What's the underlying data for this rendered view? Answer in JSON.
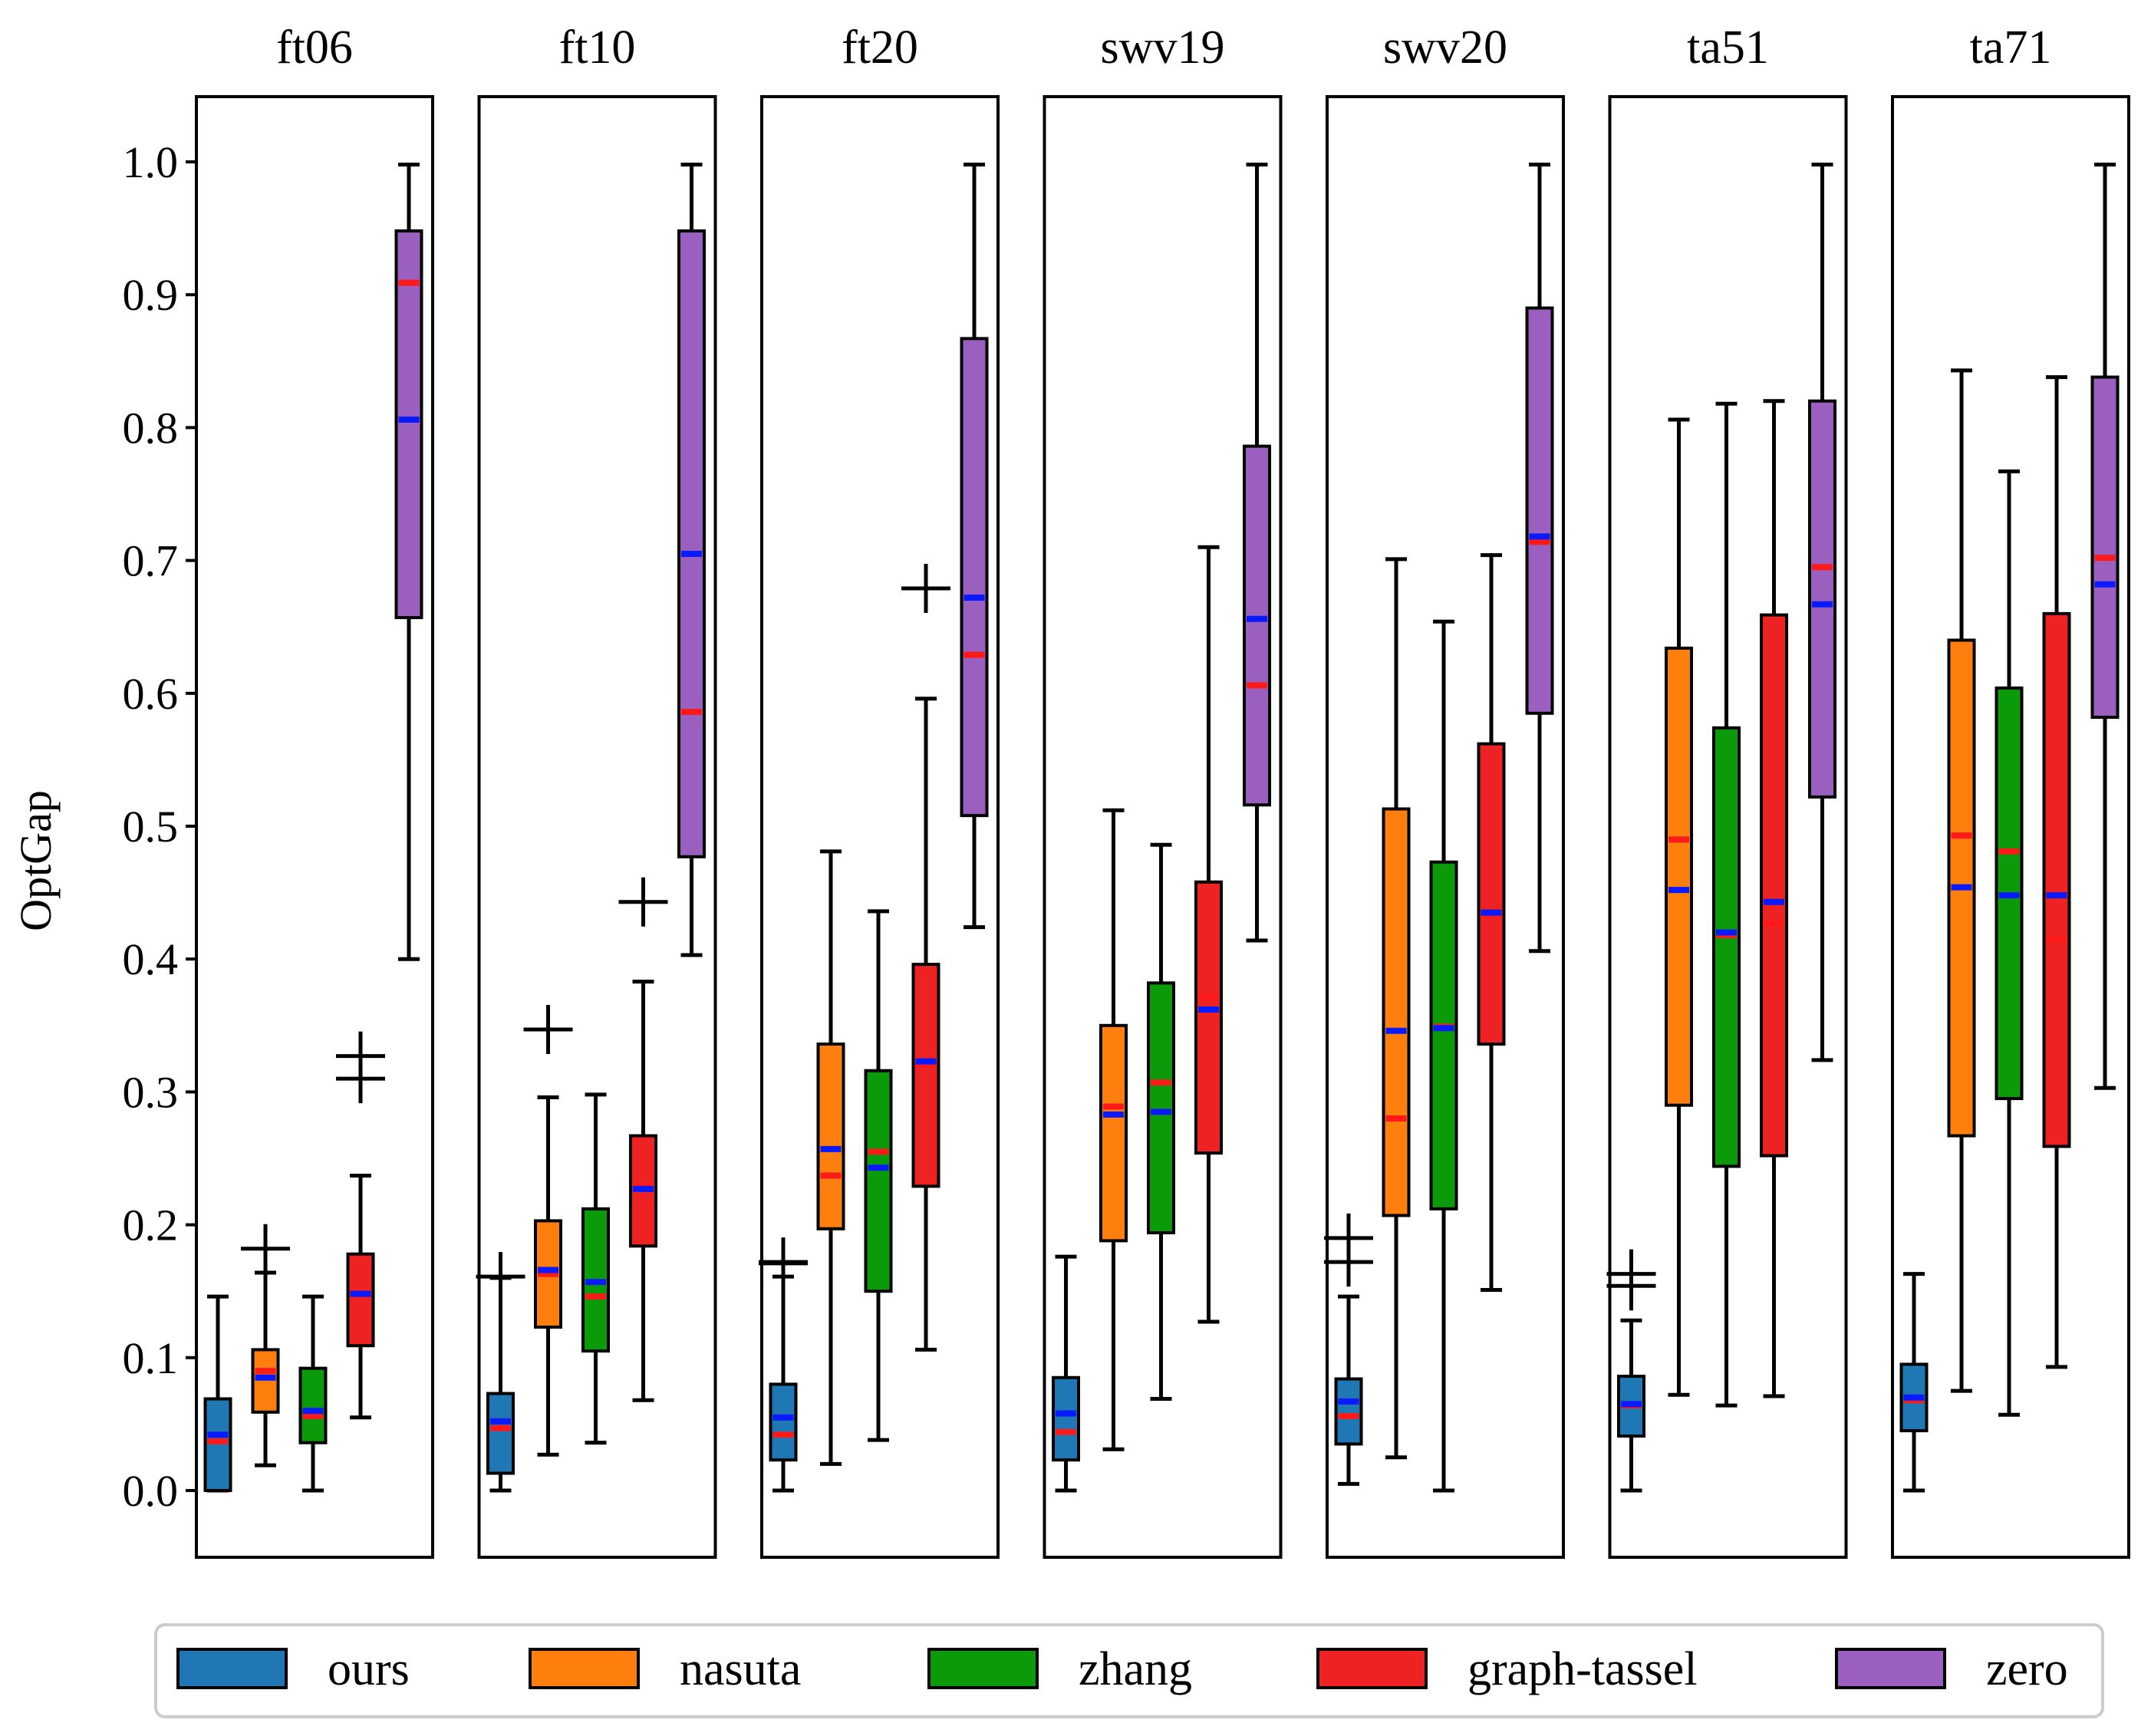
{
  "chart_data": {
    "type": "box",
    "ylabel": "OptGap",
    "ylim": [
      -0.05,
      1.05
    ],
    "yticks": [
      0.0,
      0.1,
      0.2,
      0.3,
      0.4,
      0.5,
      0.6,
      0.7,
      0.8,
      0.9,
      1.0
    ],
    "ytick_labels": [
      "0.0",
      "0.1",
      "0.2",
      "0.3",
      "0.4",
      "0.5",
      "0.6",
      "0.7",
      "0.8",
      "0.9",
      "1.0"
    ],
    "series": [
      {
        "name": "ours",
        "color": "#1f77b4"
      },
      {
        "name": "nasuta",
        "color": "#ff7f0e"
      },
      {
        "name": "zhang",
        "color": "#0a9a0a"
      },
      {
        "name": "graph-tassel",
        "color": "#ee2222"
      },
      {
        "name": "zero",
        "color": "#9b5fc0"
      }
    ],
    "median_color": "#ff1a1a",
    "mean_color": "#0a1aff",
    "panels": [
      {
        "title": "ft06",
        "boxes": [
          {
            "series": "ours",
            "whislo": 0.0,
            "q1": 0.0,
            "med": 0.037,
            "mean": 0.042,
            "q3": 0.069,
            "whishi": 0.146,
            "fliers": []
          },
          {
            "series": "nasuta",
            "whislo": 0.019,
            "q1": 0.059,
            "med": 0.09,
            "mean": 0.085,
            "q3": 0.106,
            "whishi": 0.164,
            "fliers": [
              0.182
            ]
          },
          {
            "series": "zhang",
            "whislo": 0.0,
            "q1": 0.036,
            "med": 0.056,
            "mean": 0.06,
            "q3": 0.092,
            "whishi": 0.146,
            "fliers": []
          },
          {
            "series": "graph-tassel",
            "whislo": 0.055,
            "q1": 0.109,
            "med": 0.147,
            "mean": 0.148,
            "q3": 0.178,
            "whishi": 0.237,
            "fliers": [
              0.31,
              0.327
            ]
          },
          {
            "series": "zero",
            "whislo": 0.4,
            "q1": 0.657,
            "med": 0.909,
            "mean": 0.806,
            "q3": 0.948,
            "whishi": 0.998,
            "fliers": []
          }
        ]
      },
      {
        "title": "ft10",
        "boxes": [
          {
            "series": "ours",
            "whislo": 0.0,
            "q1": 0.013,
            "med": 0.047,
            "mean": 0.052,
            "q3": 0.073,
            "whishi": 0.16,
            "fliers": [
              0.161
            ]
          },
          {
            "series": "nasuta",
            "whislo": 0.027,
            "q1": 0.123,
            "med": 0.163,
            "mean": 0.166,
            "q3": 0.203,
            "whishi": 0.296,
            "fliers": [
              0.347
            ]
          },
          {
            "series": "zhang",
            "whislo": 0.036,
            "q1": 0.105,
            "med": 0.146,
            "mean": 0.157,
            "q3": 0.212,
            "whishi": 0.298,
            "fliers": []
          },
          {
            "series": "graph-tassel",
            "whislo": 0.068,
            "q1": 0.184,
            "med": 0.229,
            "mean": 0.227,
            "q3": 0.267,
            "whishi": 0.383,
            "fliers": [
              0.443
            ]
          },
          {
            "series": "zero",
            "whislo": 0.403,
            "q1": 0.477,
            "med": 0.586,
            "mean": 0.705,
            "q3": 0.948,
            "whishi": 0.998,
            "fliers": []
          }
        ]
      },
      {
        "title": "ft20",
        "boxes": [
          {
            "series": "ours",
            "whislo": 0.0,
            "q1": 0.023,
            "med": 0.042,
            "mean": 0.055,
            "q3": 0.08,
            "whishi": 0.161,
            "fliers": [
              0.171,
              0.172
            ]
          },
          {
            "series": "nasuta",
            "whislo": 0.02,
            "q1": 0.197,
            "med": 0.237,
            "mean": 0.257,
            "q3": 0.336,
            "whishi": 0.481,
            "fliers": []
          },
          {
            "series": "zhang",
            "whislo": 0.038,
            "q1": 0.15,
            "med": 0.255,
            "mean": 0.243,
            "q3": 0.316,
            "whishi": 0.436,
            "fliers": []
          },
          {
            "series": "graph-tassel",
            "whislo": 0.106,
            "q1": 0.229,
            "med": 0.32,
            "mean": 0.323,
            "q3": 0.396,
            "whishi": 0.596,
            "fliers": [
              0.679
            ]
          },
          {
            "series": "zero",
            "whislo": 0.424,
            "q1": 0.508,
            "med": 0.629,
            "mean": 0.672,
            "q3": 0.867,
            "whishi": 0.998,
            "fliers": []
          }
        ]
      },
      {
        "title": "swv19",
        "boxes": [
          {
            "series": "ours",
            "whislo": 0.0,
            "q1": 0.023,
            "med": 0.044,
            "mean": 0.058,
            "q3": 0.085,
            "whishi": 0.176,
            "fliers": []
          },
          {
            "series": "nasuta",
            "whislo": 0.031,
            "q1": 0.188,
            "med": 0.289,
            "mean": 0.283,
            "q3": 0.35,
            "whishi": 0.512,
            "fliers": []
          },
          {
            "series": "zhang",
            "whislo": 0.069,
            "q1": 0.194,
            "med": 0.307,
            "mean": 0.285,
            "q3": 0.382,
            "whishi": 0.486,
            "fliers": []
          },
          {
            "series": "graph-tassel",
            "whislo": 0.127,
            "q1": 0.254,
            "med": 0.372,
            "mean": 0.362,
            "q3": 0.458,
            "whishi": 0.71,
            "fliers": []
          },
          {
            "series": "zero",
            "whislo": 0.414,
            "q1": 0.516,
            "med": 0.606,
            "mean": 0.656,
            "q3": 0.786,
            "whishi": 0.998,
            "fliers": []
          }
        ]
      },
      {
        "title": "swv20",
        "boxes": [
          {
            "series": "ours",
            "whislo": 0.005,
            "q1": 0.035,
            "med": 0.056,
            "mean": 0.067,
            "q3": 0.084,
            "whishi": 0.146,
            "fliers": [
              0.172,
              0.19
            ]
          },
          {
            "series": "nasuta",
            "whislo": 0.025,
            "q1": 0.207,
            "med": 0.28,
            "mean": 0.346,
            "q3": 0.513,
            "whishi": 0.701,
            "fliers": []
          },
          {
            "series": "zhang",
            "whislo": 0.0,
            "q1": 0.212,
            "med": 0.349,
            "mean": 0.348,
            "q3": 0.473,
            "whishi": 0.654,
            "fliers": []
          },
          {
            "series": "graph-tassel",
            "whislo": 0.151,
            "q1": 0.336,
            "med": 0.433,
            "mean": 0.435,
            "q3": 0.562,
            "whishi": 0.704,
            "fliers": []
          },
          {
            "series": "zero",
            "whislo": 0.406,
            "q1": 0.585,
            "med": 0.714,
            "mean": 0.718,
            "q3": 0.89,
            "whishi": 0.998,
            "fliers": []
          }
        ]
      },
      {
        "title": "ta51",
        "boxes": [
          {
            "series": "ours",
            "whislo": 0.0,
            "q1": 0.041,
            "med": 0.064,
            "mean": 0.065,
            "q3": 0.086,
            "whishi": 0.128,
            "fliers": [
              0.154,
              0.163
            ]
          },
          {
            "series": "nasuta",
            "whislo": 0.072,
            "q1": 0.29,
            "med": 0.49,
            "mean": 0.452,
            "q3": 0.634,
            "whishi": 0.806,
            "fliers": []
          },
          {
            "series": "zhang",
            "whislo": 0.064,
            "q1": 0.244,
            "med": 0.418,
            "mean": 0.42,
            "q3": 0.574,
            "whishi": 0.818,
            "fliers": []
          },
          {
            "series": "graph-tassel",
            "whislo": 0.071,
            "q1": 0.252,
            "med": 0.427,
            "mean": 0.443,
            "q3": 0.659,
            "whishi": 0.82,
            "fliers": []
          },
          {
            "series": "zero",
            "whislo": 0.324,
            "q1": 0.522,
            "med": 0.695,
            "mean": 0.667,
            "q3": 0.82,
            "whishi": 0.998,
            "fliers": []
          }
        ]
      },
      {
        "title": "ta71",
        "boxes": [
          {
            "series": "ours",
            "whislo": 0.0,
            "q1": 0.045,
            "med": 0.068,
            "mean": 0.07,
            "q3": 0.095,
            "whishi": 0.163,
            "fliers": []
          },
          {
            "series": "nasuta",
            "whislo": 0.075,
            "q1": 0.267,
            "med": 0.493,
            "mean": 0.454,
            "q3": 0.64,
            "whishi": 0.843,
            "fliers": []
          },
          {
            "series": "zhang",
            "whislo": 0.057,
            "q1": 0.295,
            "med": 0.481,
            "mean": 0.448,
            "q3": 0.604,
            "whishi": 0.767,
            "fliers": []
          },
          {
            "series": "graph-tassel",
            "whislo": 0.093,
            "q1": 0.259,
            "med": 0.415,
            "mean": 0.448,
            "q3": 0.66,
            "whishi": 0.838,
            "fliers": []
          },
          {
            "series": "zero",
            "whislo": 0.303,
            "q1": 0.582,
            "med": 0.702,
            "mean": 0.682,
            "q3": 0.838,
            "whishi": 0.998,
            "fliers": []
          }
        ]
      }
    ]
  }
}
